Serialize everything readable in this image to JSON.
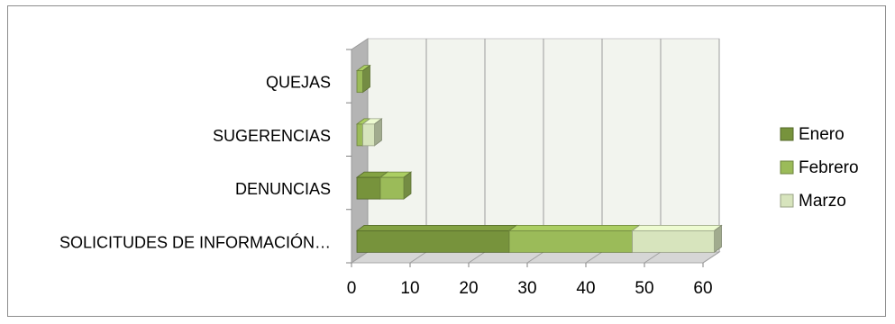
{
  "chart_data": {
    "type": "bar",
    "orientation": "horizontal",
    "stacked": true,
    "style": "3d",
    "categories": [
      "QUEJAS",
      "SUGERENCIAS",
      "DENUNCIAS",
      "SOLICITUDES DE INFORMACIÓN…"
    ],
    "series": [
      {
        "name": "Enero",
        "values": [
          0,
          0,
          4,
          26
        ]
      },
      {
        "name": "Febrero",
        "values": [
          1,
          1,
          4,
          21
        ]
      },
      {
        "name": "Marzo",
        "values": [
          0,
          2,
          0,
          14
        ]
      }
    ],
    "xlim": [
      0,
      60
    ],
    "xticks": [
      "0",
      "10",
      "20",
      "30",
      "40",
      "50",
      "60"
    ],
    "grid": true,
    "legend": "right",
    "colors": {
      "Enero": "#77933c",
      "Febrero": "#9bbb59",
      "Marzo": "#d7e4bd",
      "floor": "#d6d6d6",
      "wall": "#f2f4ee",
      "side_wall": "#b4b4b4"
    }
  }
}
